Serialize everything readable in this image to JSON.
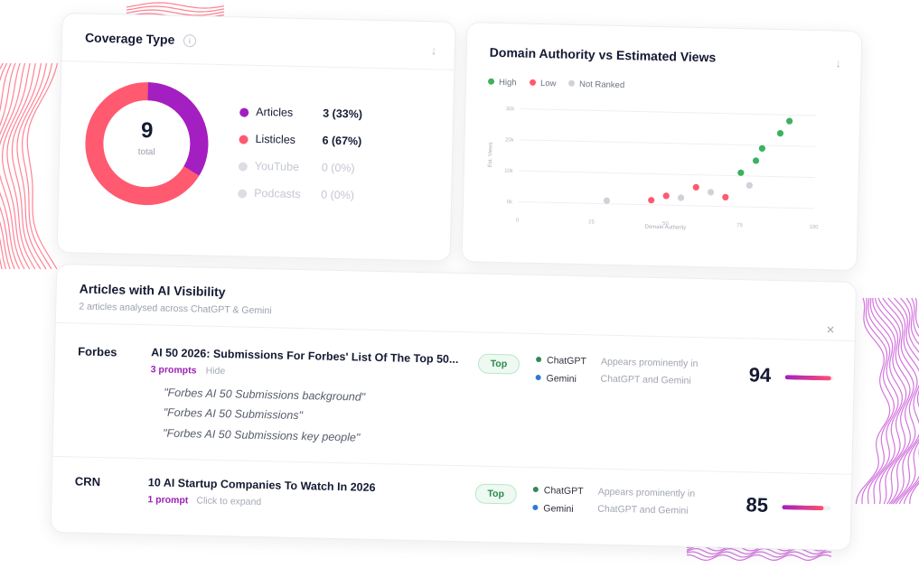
{
  "colors": {
    "purple": "#a31fc2",
    "coral": "#ff5a70",
    "green": "#3cb15f",
    "grey": "#cfd2d8",
    "navy": "#141a33"
  },
  "coverage": {
    "title": "Coverage Type",
    "info_icon": "info-icon",
    "download_icon": "arrow-down-icon",
    "total": "9",
    "total_label": "total",
    "legend": [
      {
        "label": "Articles",
        "value": "3 (33%)",
        "color": "#a31fc2",
        "share": 0.333
      },
      {
        "label": "Listicles",
        "value": "6 (67%)",
        "color": "#ff5a70",
        "share": 0.667
      },
      {
        "label": "YouTube",
        "value": "0 (0%)",
        "color": "#dcdee3",
        "share": 0
      },
      {
        "label": "Podcasts",
        "value": "0 (0%)",
        "color": "#dcdee3",
        "share": 0
      }
    ]
  },
  "scatter": {
    "title": "Domain Authority vs Estimated Views",
    "download_icon": "arrow-down-icon",
    "legend": [
      {
        "label": "High",
        "color": "#3cb15f"
      },
      {
        "label": "Low",
        "color": "#ff5a70"
      },
      {
        "label": "Not Ranked",
        "color": "#cfd2d8"
      }
    ]
  },
  "chart_data": {
    "type": "scatter",
    "xlabel": "Domain Authority",
    "ylabel": "Est. Views",
    "xlim": [
      0,
      100
    ],
    "ylim": [
      0,
      30000
    ],
    "x_ticks": [
      "0",
      "25",
      "50",
      "75",
      "100"
    ],
    "y_ticks": [
      "0k",
      "10k",
      "20k",
      "30k"
    ],
    "grid": true,
    "series": [
      {
        "name": "High",
        "color": "#3cb15f",
        "x": [
          75,
          80,
          82,
          88,
          91
        ],
        "y": [
          11000,
          15000,
          19000,
          24000,
          28000
        ]
      },
      {
        "name": "Low",
        "color": "#ff5a70",
        "x": [
          45,
          50,
          60,
          70
        ],
        "y": [
          1500,
          3000,
          6000,
          3000
        ]
      },
      {
        "name": "Not Ranked",
        "color": "#cfd2d8",
        "x": [
          30,
          55,
          65,
          78
        ],
        "y": [
          1000,
          2500,
          4500,
          7000
        ]
      }
    ]
  },
  "articles": {
    "title": "Articles with AI Visibility",
    "subtitle": "2 articles analysed across ChatGPT & Gemini",
    "close_icon": "close-icon",
    "rows": [
      {
        "source": "Forbes",
        "title": "AI 50 2026: Submissions For Forbes' List Of The Top 50...",
        "prompts_label": "3 prompts",
        "toggle_label": "Hide",
        "prompts": [
          "\"Forbes AI 50 Submissions background\"",
          "\"Forbes AI 50 Submissions\"",
          "\"Forbes AI 50 Submissions key people\""
        ],
        "badge": "Top",
        "engines": [
          "ChatGPT",
          "Gemini"
        ],
        "description": "Appears prominently in ChatGPT and Gemini",
        "score": "94",
        "score_fraction": 0.94
      },
      {
        "source": "CRN",
        "title": "10 AI Startup Companies To Watch In 2026",
        "prompts_label": "1 prompt",
        "toggle_label": "Click to expand",
        "prompts": [],
        "badge": "Top",
        "engines": [
          "ChatGPT",
          "Gemini"
        ],
        "description": "Appears prominently in ChatGPT and Gemini",
        "score": "85",
        "score_fraction": 0.85
      }
    ]
  }
}
